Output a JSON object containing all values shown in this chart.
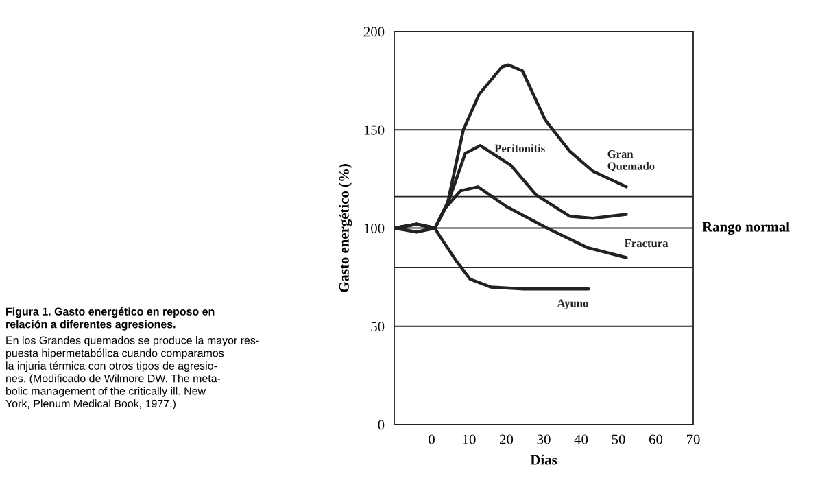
{
  "chart_data": {
    "type": "line",
    "title": "Figura 1. Gasto energético en reposo en\nrelación a diferentes agresiones.",
    "xlabel": "Días",
    "ylabel": "Gasto energético (%)",
    "xlim": [
      -10,
      70
    ],
    "xticks": [
      0,
      10,
      20,
      30,
      40,
      50,
      60,
      70
    ],
    "ylim": [
      0,
      200
    ],
    "yticks": [
      0,
      50,
      100,
      150,
      200
    ],
    "grid": "y",
    "line_style": "solid",
    "marker": "none",
    "series": [
      {
        "name": "Gran\nQuemado",
        "color": "#222222",
        "x": [
          -10,
          -4,
          0.9,
          4.2,
          8.5,
          12.7,
          18.8,
          20.6,
          24.3,
          30.4,
          37,
          43.1,
          52.1
        ],
        "values": [
          100,
          102,
          100,
          112,
          150,
          168,
          182,
          183,
          180,
          155,
          139,
          129,
          121
        ]
      },
      {
        "name": "Peritonitis",
        "color": "#222222",
        "x": [
          -10,
          -4,
          0.9,
          4.8,
          9,
          13,
          21.2,
          27.9,
          37,
          43.1,
          52.1
        ],
        "values": [
          100,
          102,
          100,
          115,
          138,
          142,
          132,
          117,
          106,
          105,
          107
        ]
      },
      {
        "name": "Fractura",
        "color": "#222222",
        "x": [
          -10,
          -4,
          0.9,
          3.6,
          7.8,
          12.4,
          20,
          30.9,
          41.8,
          52.1
        ],
        "values": [
          100,
          102,
          100,
          110,
          119,
          121,
          111,
          100,
          90,
          85
        ]
      },
      {
        "name": "Ayuno",
        "color": "#222222",
        "x": [
          -10,
          -4,
          0.9,
          1.8,
          6.7,
          10.3,
          15.8,
          24.8,
          42
        ],
        "values": [
          100,
          98,
          100,
          97,
          83,
          74,
          70,
          69,
          69
        ]
      }
    ],
    "ref_lines": [
      {
        "axis": "y",
        "value": 116
      },
      {
        "axis": "y",
        "value": 80
      }
    ],
    "annotations": [
      "Rango normal",
      "En los Grandes quemados se produce la mayor res-\npuesta hipermetabólica cuando comparamos\nla injuria térmica con otros tipos de agresio-\nnes. (Modificado de Wilmore DW. The meta-\nbolic management of the critically ill. New\nYork, Plenum Medical Book, 1977.)"
    ]
  }
}
